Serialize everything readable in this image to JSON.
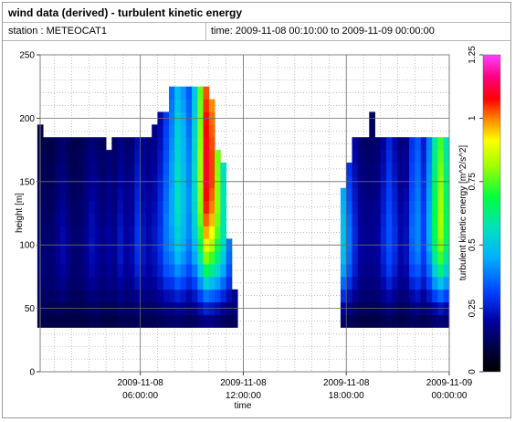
{
  "window": {
    "title": "wind data (derived) - turbulent kinetic energy",
    "station_label": "station : METEOCAT1",
    "time_label": "time: 2009-11-08 00:10:00 to 2009-11-09 00:00:00"
  },
  "chart_data": {
    "type": "heatmap",
    "xlabel": "time",
    "ylabel": "height [m]",
    "colorbar_label": "turbulent kinetic energy [m^2/s^2]",
    "x_range": [
      "2009-11-08 00:10:00",
      "2009-11-09 00:00:00"
    ],
    "ylim": [
      0,
      250
    ],
    "color_range": [
      0,
      1.25
    ],
    "x_ticks": [
      {
        "time": "2009-11-08 06:00:00",
        "line1": "2009-11-08",
        "line2": "06:00:00"
      },
      {
        "time": "2009-11-08 12:00:00",
        "line1": "2009-11-08",
        "line2": "12:00:00"
      },
      {
        "time": "2009-11-08 18:00:00",
        "line1": "2009-11-08",
        "line2": "18:00:00"
      },
      {
        "time": "2009-11-09 00:00:00",
        "line1": "2009-11-09",
        "line2": "00:00:00"
      }
    ],
    "y_ticks": [
      "0",
      "50",
      "100",
      "150",
      "200",
      "250"
    ],
    "colorbar_ticks": [
      "0",
      "0.25",
      "0.5",
      "0.75",
      "1",
      "1.25"
    ],
    "grid": true,
    "tke_columns": [
      {
        "time": "2009-11-08 00:10",
        "top": 195,
        "values": [
          0.1,
          0.12,
          0.14,
          0.15,
          0.16,
          0.16,
          0.15,
          0.14,
          0.14,
          0.13,
          0.12,
          0.12,
          0.11,
          0.11,
          0.1,
          0.1
        ]
      },
      {
        "time": "2009-11-08 00:30",
        "top": 185,
        "values": [
          0.1,
          0.12,
          0.13,
          0.14,
          0.15,
          0.15,
          0.15,
          0.14,
          0.13,
          0.13,
          0.12,
          0.12,
          0.11,
          0.11,
          0.1
        ]
      },
      {
        "time": "2009-11-08 00:50",
        "top": 185,
        "values": [
          0.1,
          0.11,
          0.13,
          0.14,
          0.14,
          0.15,
          0.14,
          0.14,
          0.13,
          0.12,
          0.12,
          0.11,
          0.11,
          0.1,
          0.1
        ]
      },
      {
        "time": "2009-11-08 01:10",
        "top": 185,
        "values": [
          0.1,
          0.12,
          0.14,
          0.16,
          0.17,
          0.18,
          0.18,
          0.17,
          0.17,
          0.16,
          0.15,
          0.15,
          0.14,
          0.13,
          0.12
        ]
      },
      {
        "time": "2009-11-08 01:30",
        "top": 185,
        "values": [
          0.1,
          0.12,
          0.15,
          0.18,
          0.2,
          0.21,
          0.21,
          0.21,
          0.2,
          0.19,
          0.18,
          0.17,
          0.16,
          0.15,
          0.14
        ]
      },
      {
        "time": "2009-11-08 01:50",
        "top": 185,
        "values": [
          0.1,
          0.11,
          0.13,
          0.15,
          0.16,
          0.17,
          0.17,
          0.17,
          0.16,
          0.15,
          0.14,
          0.14,
          0.13,
          0.12,
          0.12
        ]
      },
      {
        "time": "2009-11-08 02:10",
        "top": 185,
        "values": [
          0.1,
          0.11,
          0.12,
          0.13,
          0.14,
          0.14,
          0.14,
          0.14,
          0.13,
          0.13,
          0.12,
          0.12,
          0.11,
          0.11,
          0.1
        ]
      },
      {
        "time": "2009-11-08 02:30",
        "top": 185,
        "values": [
          0.1,
          0.11,
          0.12,
          0.14,
          0.15,
          0.15,
          0.15,
          0.15,
          0.14,
          0.14,
          0.13,
          0.13,
          0.12,
          0.12,
          0.11
        ]
      },
      {
        "time": "2009-11-08 02:50",
        "top": 185,
        "values": [
          0.1,
          0.12,
          0.14,
          0.16,
          0.17,
          0.18,
          0.18,
          0.18,
          0.17,
          0.16,
          0.16,
          0.15,
          0.14,
          0.14,
          0.13
        ]
      },
      {
        "time": "2009-11-08 03:10",
        "top": 185,
        "values": [
          0.11,
          0.13,
          0.16,
          0.19,
          0.21,
          0.22,
          0.23,
          0.22,
          0.22,
          0.21,
          0.2,
          0.19,
          0.18,
          0.17,
          0.16
        ]
      },
      {
        "time": "2009-11-08 03:30",
        "top": 185,
        "values": [
          0.11,
          0.13,
          0.15,
          0.17,
          0.19,
          0.2,
          0.2,
          0.2,
          0.19,
          0.18,
          0.17,
          0.17,
          0.16,
          0.15,
          0.14
        ]
      },
      {
        "time": "2009-11-08 03:50",
        "top": 185,
        "values": [
          0.1,
          0.12,
          0.14,
          0.15,
          0.16,
          0.17,
          0.17,
          0.17,
          0.16,
          0.15,
          0.15,
          0.14,
          0.13,
          0.13,
          0.12
        ]
      },
      {
        "time": "2009-11-08 04:10",
        "top": 175,
        "values": [
          0.1,
          0.12,
          0.15,
          0.17,
          0.19,
          0.2,
          0.2,
          0.2,
          0.19,
          0.18,
          0.18,
          0.17,
          0.16,
          0.15
        ]
      },
      {
        "time": "2009-11-08 04:30",
        "top": 185,
        "values": [
          0.1,
          0.12,
          0.14,
          0.16,
          0.17,
          0.18,
          0.18,
          0.18,
          0.17,
          0.16,
          0.16,
          0.15,
          0.14,
          0.14,
          0.13
        ]
      },
      {
        "time": "2009-11-08 04:50",
        "top": 185,
        "values": [
          0.11,
          0.14,
          0.17,
          0.2,
          0.22,
          0.24,
          0.24,
          0.24,
          0.23,
          0.22,
          0.21,
          0.2,
          0.19,
          0.18,
          0.17
        ]
      },
      {
        "time": "2009-11-08 05:10",
        "top": 185,
        "values": [
          0.11,
          0.13,
          0.15,
          0.17,
          0.19,
          0.2,
          0.2,
          0.2,
          0.19,
          0.18,
          0.18,
          0.17,
          0.16,
          0.15,
          0.14
        ]
      },
      {
        "time": "2009-11-08 05:30",
        "top": 185,
        "values": [
          0.11,
          0.13,
          0.16,
          0.18,
          0.2,
          0.21,
          0.21,
          0.21,
          0.2,
          0.19,
          0.19,
          0.18,
          0.17,
          0.16,
          0.15
        ]
      },
      {
        "time": "2009-11-08 05:50",
        "top": 185,
        "values": [
          0.12,
          0.15,
          0.19,
          0.23,
          0.26,
          0.28,
          0.29,
          0.29,
          0.28,
          0.27,
          0.26,
          0.25,
          0.24,
          0.23,
          0.22
        ]
      },
      {
        "time": "2009-11-08 06:10",
        "top": 185,
        "values": [
          0.11,
          0.14,
          0.17,
          0.2,
          0.22,
          0.24,
          0.24,
          0.24,
          0.23,
          0.22,
          0.21,
          0.21,
          0.2,
          0.19,
          0.18
        ]
      },
      {
        "time": "2009-11-08 06:30",
        "top": 185,
        "values": [
          0.11,
          0.13,
          0.16,
          0.18,
          0.2,
          0.21,
          0.21,
          0.21,
          0.2,
          0.2,
          0.19,
          0.18,
          0.17,
          0.17,
          0.16
        ]
      },
      {
        "time": "2009-11-08 06:50",
        "top": 195,
        "values": [
          0.11,
          0.14,
          0.17,
          0.2,
          0.22,
          0.23,
          0.24,
          0.24,
          0.23,
          0.22,
          0.21,
          0.21,
          0.2,
          0.19,
          0.18,
          0.17
        ]
      },
      {
        "time": "2009-11-08 07:10",
        "top": 205,
        "values": [
          0.12,
          0.15,
          0.19,
          0.23,
          0.26,
          0.28,
          0.29,
          0.29,
          0.28,
          0.28,
          0.27,
          0.26,
          0.25,
          0.24,
          0.23,
          0.22,
          0.21
        ]
      },
      {
        "time": "2009-11-08 07:30",
        "top": 205,
        "values": [
          0.13,
          0.17,
          0.22,
          0.28,
          0.33,
          0.36,
          0.38,
          0.38,
          0.38,
          0.37,
          0.36,
          0.35,
          0.34,
          0.33,
          0.32,
          0.31,
          0.3
        ]
      },
      {
        "time": "2009-11-08 07:50",
        "top": 225,
        "values": [
          0.13,
          0.17,
          0.23,
          0.29,
          0.35,
          0.39,
          0.42,
          0.43,
          0.44,
          0.44,
          0.44,
          0.43,
          0.43,
          0.42,
          0.41,
          0.4,
          0.39,
          0.38,
          0.37
        ]
      },
      {
        "time": "2009-11-08 08:10",
        "top": 225,
        "values": [
          0.14,
          0.19,
          0.26,
          0.34,
          0.41,
          0.47,
          0.51,
          0.53,
          0.55,
          0.56,
          0.56,
          0.56,
          0.55,
          0.54,
          0.53,
          0.52,
          0.51,
          0.5,
          0.48
        ]
      },
      {
        "time": "2009-11-08 08:30",
        "top": 225,
        "values": [
          0.13,
          0.18,
          0.24,
          0.31,
          0.37,
          0.42,
          0.45,
          0.47,
          0.48,
          0.49,
          0.49,
          0.49,
          0.48,
          0.47,
          0.47,
          0.46,
          0.45,
          0.43,
          0.42
        ]
      },
      {
        "time": "2009-11-08 08:50",
        "top": 225,
        "values": [
          0.12,
          0.16,
          0.21,
          0.27,
          0.32,
          0.36,
          0.38,
          0.4,
          0.4,
          0.41,
          0.41,
          0.4,
          0.4,
          0.39,
          0.38,
          0.37,
          0.36,
          0.35,
          0.34
        ]
      },
      {
        "time": "2009-11-08 09:10",
        "top": 225,
        "values": [
          0.13,
          0.18,
          0.24,
          0.31,
          0.38,
          0.44,
          0.48,
          0.51,
          0.53,
          0.54,
          0.55,
          0.55,
          0.55,
          0.54,
          0.54,
          0.53,
          0.52,
          0.51,
          0.5
        ]
      },
      {
        "time": "2009-11-08 09:30",
        "top": 225,
        "values": [
          0.15,
          0.22,
          0.31,
          0.41,
          0.51,
          0.6,
          0.67,
          0.72,
          0.76,
          0.79,
          0.8,
          0.81,
          0.81,
          0.81,
          0.8,
          0.79,
          0.78,
          0.77,
          0.76
        ]
      },
      {
        "time": "2009-11-08 09:50",
        "top": 225,
        "values": [
          0.17,
          0.26,
          0.38,
          0.52,
          0.66,
          0.79,
          0.89,
          0.97,
          1.02,
          1.06,
          1.08,
          1.1,
          1.1,
          1.1,
          1.09,
          1.08,
          1.07,
          1.05,
          1.03
        ]
      },
      {
        "time": "2009-11-08 10:10",
        "top": 215,
        "values": [
          0.16,
          0.24,
          0.35,
          0.48,
          0.61,
          0.73,
          0.83,
          0.91,
          0.96,
          1.0,
          1.02,
          1.04,
          1.04,
          1.04,
          1.03,
          1.02,
          1.01,
          0.99
        ]
      },
      {
        "time": "2009-11-08 10:30",
        "top": 175,
        "values": [
          0.15,
          0.22,
          0.32,
          0.43,
          0.54,
          0.63,
          0.7,
          0.75,
          0.78,
          0.8,
          0.8,
          0.8,
          0.79,
          0.78
        ]
      },
      {
        "time": "2009-11-08 10:50",
        "top": 165,
        "values": [
          0.13,
          0.19,
          0.27,
          0.36,
          0.44,
          0.51,
          0.55,
          0.57,
          0.58,
          0.58,
          0.58,
          0.57,
          0.56
        ]
      },
      {
        "time": "2009-11-08 11:10",
        "top": 105,
        "values": [
          0.12,
          0.16,
          0.22,
          0.28,
          0.33,
          0.36,
          0.38
        ]
      },
      {
        "time": "2009-11-08 11:30",
        "top": 65,
        "values": [
          0.12,
          0.15,
          0.18
        ]
      },
      {
        "time": "2009-11-08 17:50",
        "top": 145,
        "values": [
          0.14,
          0.2,
          0.28,
          0.36,
          0.43,
          0.47,
          0.49,
          0.49,
          0.48,
          0.46,
          0.44
        ]
      },
      {
        "time": "2009-11-08 18:10",
        "top": 165,
        "values": [
          0.12,
          0.17,
          0.23,
          0.29,
          0.34,
          0.37,
          0.38,
          0.38,
          0.37,
          0.35,
          0.33,
          0.31,
          0.29
        ]
      },
      {
        "time": "2009-11-08 18:30",
        "top": 185,
        "values": [
          0.11,
          0.14,
          0.18,
          0.22,
          0.25,
          0.26,
          0.27,
          0.27,
          0.26,
          0.25,
          0.24,
          0.23,
          0.22,
          0.21,
          0.2
        ]
      },
      {
        "time": "2009-11-08 18:50",
        "top": 185,
        "values": [
          0.1,
          0.12,
          0.15,
          0.17,
          0.19,
          0.2,
          0.2,
          0.2,
          0.19,
          0.19,
          0.18,
          0.17,
          0.16,
          0.16,
          0.15
        ]
      },
      {
        "time": "2009-11-08 19:10",
        "top": 185,
        "values": [
          0.1,
          0.12,
          0.14,
          0.16,
          0.17,
          0.18,
          0.18,
          0.18,
          0.17,
          0.17,
          0.16,
          0.15,
          0.15,
          0.14,
          0.13
        ]
      },
      {
        "time": "2009-11-08 19:30",
        "top": 205,
        "values": [
          0.1,
          0.12,
          0.14,
          0.16,
          0.17,
          0.18,
          0.18,
          0.18,
          0.18,
          0.17,
          0.16,
          0.16,
          0.15,
          0.14,
          0.14,
          0.13,
          0.12
        ]
      },
      {
        "time": "2009-11-08 19:50",
        "top": 185,
        "values": [
          0.1,
          0.12,
          0.15,
          0.17,
          0.19,
          0.2,
          0.2,
          0.2,
          0.19,
          0.19,
          0.18,
          0.17,
          0.17,
          0.16,
          0.15
        ]
      },
      {
        "time": "2009-11-08 20:10",
        "top": 185,
        "values": [
          0.11,
          0.14,
          0.18,
          0.21,
          0.24,
          0.26,
          0.27,
          0.27,
          0.26,
          0.25,
          0.24,
          0.23,
          0.22,
          0.21,
          0.2
        ]
      },
      {
        "time": "2009-11-08 20:30",
        "top": 185,
        "values": [
          0.12,
          0.16,
          0.21,
          0.26,
          0.3,
          0.32,
          0.33,
          0.33,
          0.33,
          0.32,
          0.31,
          0.3,
          0.29,
          0.28,
          0.27
        ]
      },
      {
        "time": "2009-11-08 20:50",
        "top": 185,
        "values": [
          0.11,
          0.14,
          0.18,
          0.22,
          0.25,
          0.27,
          0.28,
          0.28,
          0.27,
          0.26,
          0.25,
          0.24,
          0.23,
          0.22,
          0.21
        ]
      },
      {
        "time": "2009-11-08 21:10",
        "top": 185,
        "values": [
          0.1,
          0.12,
          0.15,
          0.18,
          0.2,
          0.21,
          0.21,
          0.21,
          0.21,
          0.2,
          0.19,
          0.18,
          0.18,
          0.17,
          0.16
        ]
      },
      {
        "time": "2009-11-08 21:30",
        "top": 185,
        "values": [
          0.11,
          0.13,
          0.16,
          0.19,
          0.21,
          0.23,
          0.23,
          0.23,
          0.22,
          0.22,
          0.21,
          0.2,
          0.19,
          0.19,
          0.18
        ]
      },
      {
        "time": "2009-11-08 21:50",
        "top": 185,
        "values": [
          0.12,
          0.16,
          0.21,
          0.26,
          0.31,
          0.34,
          0.35,
          0.36,
          0.35,
          0.34,
          0.33,
          0.32,
          0.31,
          0.3,
          0.29
        ]
      },
      {
        "time": "2009-11-08 22:10",
        "top": 185,
        "values": [
          0.12,
          0.17,
          0.23,
          0.29,
          0.34,
          0.38,
          0.4,
          0.4,
          0.4,
          0.39,
          0.38,
          0.37,
          0.36,
          0.35,
          0.34
        ]
      },
      {
        "time": "2009-11-08 22:30",
        "top": 185,
        "values": [
          0.11,
          0.15,
          0.19,
          0.24,
          0.28,
          0.3,
          0.31,
          0.31,
          0.31,
          0.3,
          0.29,
          0.28,
          0.27,
          0.26,
          0.25
        ]
      },
      {
        "time": "2009-11-08 22:50",
        "top": 185,
        "values": [
          0.12,
          0.17,
          0.24,
          0.31,
          0.37,
          0.41,
          0.44,
          0.45,
          0.45,
          0.44,
          0.43,
          0.42,
          0.41,
          0.4,
          0.39
        ]
      },
      {
        "time": "2009-11-08 23:10",
        "top": 185,
        "values": [
          0.14,
          0.21,
          0.31,
          0.42,
          0.52,
          0.6,
          0.65,
          0.67,
          0.68,
          0.67,
          0.66,
          0.65,
          0.63,
          0.62,
          0.6
        ]
      },
      {
        "time": "2009-11-08 23:30",
        "top": 185,
        "values": [
          0.15,
          0.24,
          0.36,
          0.5,
          0.63,
          0.73,
          0.79,
          0.82,
          0.83,
          0.82,
          0.81,
          0.8,
          0.78,
          0.76,
          0.74
        ]
      },
      {
        "time": "2009-11-08 23:50",
        "top": 185,
        "values": [
          0.14,
          0.21,
          0.31,
          0.42,
          0.52,
          0.6,
          0.65,
          0.67,
          0.67,
          0.66,
          0.65,
          0.64,
          0.62,
          0.6,
          0.58
        ]
      }
    ]
  }
}
